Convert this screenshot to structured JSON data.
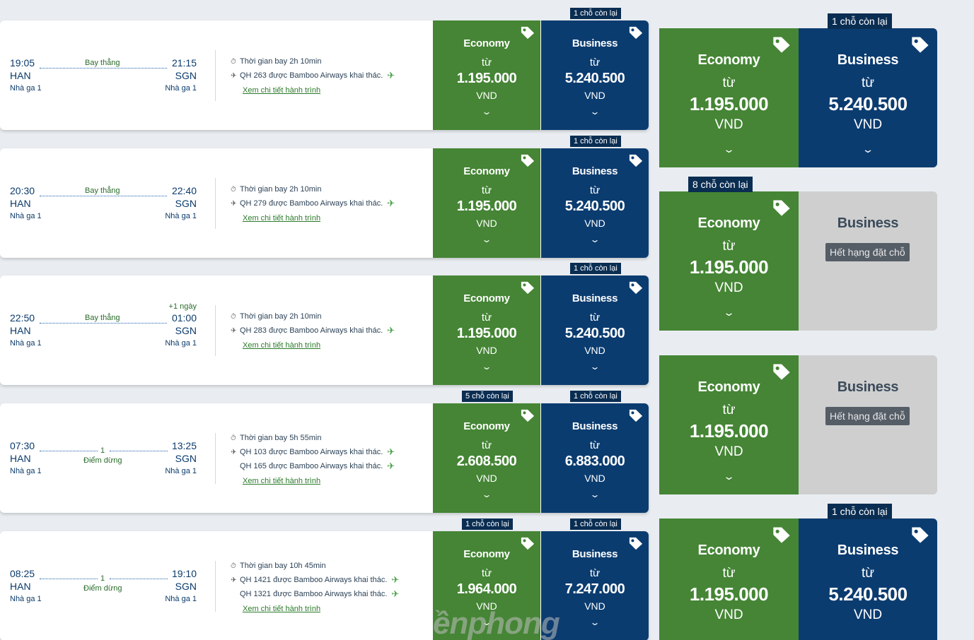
{
  "common": {
    "economy_label": "Economy",
    "business_label": "Business",
    "from_label": "từ",
    "currency": "VND",
    "terminal": "Nhà ga 1",
    "origin": "HAN",
    "destination": "SGN",
    "direct_label": "Bay thẳng",
    "stop_label": "Điểm dừng",
    "detail_link": "Xem chi tiết hành trình",
    "chevron": "⌄",
    "sold_out": "Hết hạng đặt chỗ"
  },
  "flights": [
    {
      "dep_time": "19:05",
      "arr_time": "21:15",
      "type": "direct",
      "duration": "Thời gian bay 2h 10min",
      "operators": [
        "QH 263 được Bamboo Airways khai thác."
      ],
      "economy": {
        "price": "1.195.000",
        "seats": ""
      },
      "business": {
        "price": "5.240.500",
        "seats": "1 chỗ còn lại"
      }
    },
    {
      "dep_time": "20:30",
      "arr_time": "22:40",
      "type": "direct",
      "duration": "Thời gian bay 2h 10min",
      "operators": [
        "QH 279 được Bamboo Airways khai thác."
      ],
      "economy": {
        "price": "1.195.000",
        "seats": ""
      },
      "business": {
        "price": "5.240.500",
        "seats": "1 chỗ còn lại"
      }
    },
    {
      "dep_time": "22:50",
      "arr_time": "01:00",
      "type": "direct",
      "plus_day": "+1 ngày",
      "duration": "Thời gian bay 2h 10min",
      "operators": [
        "QH 283 được Bamboo Airways khai thác."
      ],
      "economy": {
        "price": "1.195.000",
        "seats": ""
      },
      "business": {
        "price": "5.240.500",
        "seats": "1 chỗ còn lại"
      }
    },
    {
      "dep_time": "07:30",
      "arr_time": "13:25",
      "type": "stop",
      "stops": "1",
      "duration": "Thời gian bay 5h 55min",
      "operators": [
        "QH 103 được Bamboo Airways khai thác.",
        "QH 165 được Bamboo Airways khai thác."
      ],
      "economy": {
        "price": "2.608.500",
        "seats": "5 chỗ còn lại"
      },
      "business": {
        "price": "6.883.000",
        "seats": "1 chỗ còn lại"
      }
    },
    {
      "dep_time": "08:25",
      "arr_time": "19:10",
      "type": "stop",
      "stops": "1",
      "duration": "Thời gian bay 10h 45min",
      "operators": [
        "QH 1421 được Bamboo Airways khai thác.",
        "QH 1321 được Bamboo Airways khai thác."
      ],
      "economy": {
        "price": "1.964.000",
        "seats": "1 chỗ còn lại"
      },
      "business": {
        "price": "7.247.000",
        "seats": "1 chỗ còn lại"
      }
    }
  ],
  "zoomed": [
    {
      "economy": {
        "price": "1.195.000",
        "seats": ""
      },
      "business": {
        "price": "5.240.500",
        "seats": "1 chỗ còn lại",
        "available": true
      }
    },
    {
      "economy": {
        "price": "1.195.000",
        "seats": "8 chỗ còn lại"
      },
      "business": {
        "available": false
      }
    },
    {
      "economy": {
        "price": "1.195.000",
        "seats": ""
      },
      "business": {
        "available": false
      }
    },
    {
      "economy": {
        "price": "1.195.000",
        "seats": ""
      },
      "business": {
        "price": "5.240.500",
        "seats": "1 chỗ còn lại",
        "available": true
      }
    }
  ],
  "watermark": "ềnphong",
  "colors": {
    "economy": "#458535",
    "business": "#0b3c70",
    "seat_badge": "#0a2d52",
    "sold_out_bg": "#cfcfcf"
  }
}
